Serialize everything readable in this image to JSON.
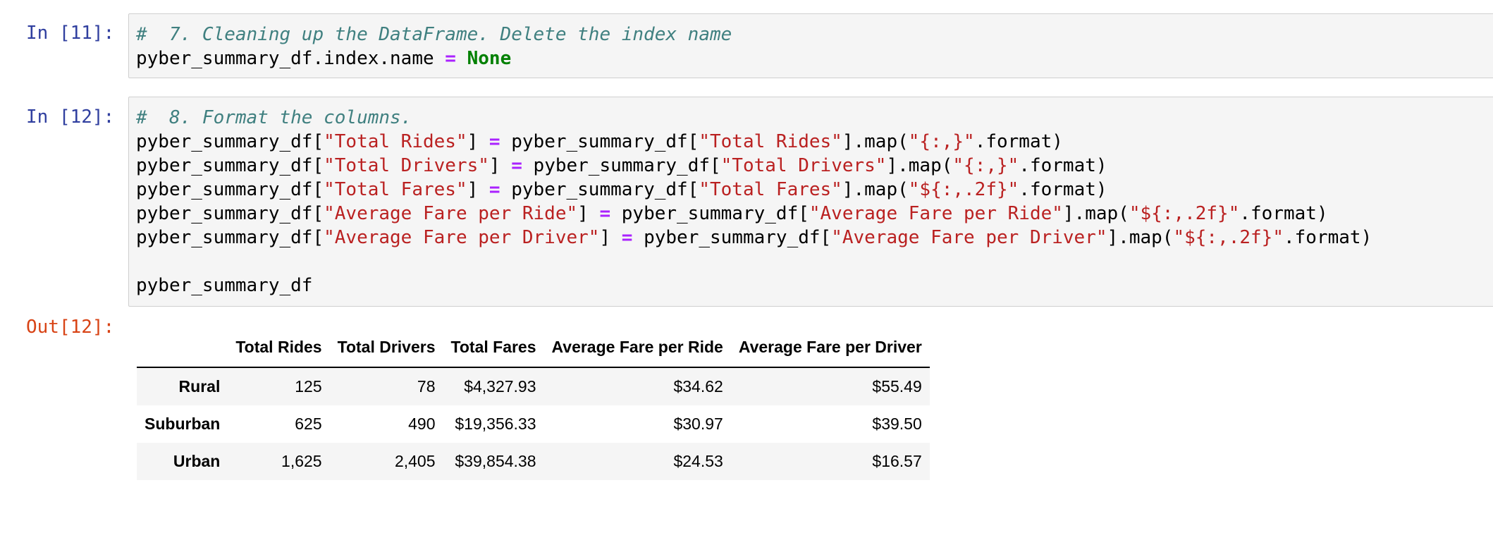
{
  "cells": [
    {
      "prompt": "In [11]:",
      "lines": [
        [
          {
            "t": "#  7. Cleaning up the DataFrame. Delete the index name",
            "c": "cm"
          }
        ],
        [
          {
            "t": "pyber_summary_df.index.name ",
            "c": "nm"
          },
          {
            "t": "=",
            "c": "op"
          },
          {
            "t": " ",
            "c": "nm"
          },
          {
            "t": "None",
            "c": "kw"
          }
        ]
      ]
    },
    {
      "prompt": "In [12]:",
      "lines": [
        [
          {
            "t": "#  8. Format the columns.",
            "c": "cm"
          }
        ],
        [
          {
            "t": "pyber_summary_df[",
            "c": "nm"
          },
          {
            "t": "\"Total Rides\"",
            "c": "st"
          },
          {
            "t": "] ",
            "c": "nm"
          },
          {
            "t": "=",
            "c": "op"
          },
          {
            "t": " pyber_summary_df[",
            "c": "nm"
          },
          {
            "t": "\"Total Rides\"",
            "c": "st"
          },
          {
            "t": "].map(",
            "c": "nm"
          },
          {
            "t": "\"{:,}\"",
            "c": "st"
          },
          {
            "t": ".format)",
            "c": "nm"
          }
        ],
        [
          {
            "t": "pyber_summary_df[",
            "c": "nm"
          },
          {
            "t": "\"Total Drivers\"",
            "c": "st"
          },
          {
            "t": "] ",
            "c": "nm"
          },
          {
            "t": "=",
            "c": "op"
          },
          {
            "t": " pyber_summary_df[",
            "c": "nm"
          },
          {
            "t": "\"Total Drivers\"",
            "c": "st"
          },
          {
            "t": "].map(",
            "c": "nm"
          },
          {
            "t": "\"{:,}\"",
            "c": "st"
          },
          {
            "t": ".format)",
            "c": "nm"
          }
        ],
        [
          {
            "t": "pyber_summary_df[",
            "c": "nm"
          },
          {
            "t": "\"Total Fares\"",
            "c": "st"
          },
          {
            "t": "] ",
            "c": "nm"
          },
          {
            "t": "=",
            "c": "op"
          },
          {
            "t": " pyber_summary_df[",
            "c": "nm"
          },
          {
            "t": "\"Total Fares\"",
            "c": "st"
          },
          {
            "t": "].map(",
            "c": "nm"
          },
          {
            "t": "\"${:,.2f}\"",
            "c": "st"
          },
          {
            "t": ".format)",
            "c": "nm"
          }
        ],
        [
          {
            "t": "pyber_summary_df[",
            "c": "nm"
          },
          {
            "t": "\"Average Fare per Ride\"",
            "c": "st"
          },
          {
            "t": "] ",
            "c": "nm"
          },
          {
            "t": "=",
            "c": "op"
          },
          {
            "t": " pyber_summary_df[",
            "c": "nm"
          },
          {
            "t": "\"Average Fare per Ride\"",
            "c": "st"
          },
          {
            "t": "].map(",
            "c": "nm"
          },
          {
            "t": "\"${:,.2f}\"",
            "c": "st"
          },
          {
            "t": ".format)",
            "c": "nm"
          }
        ],
        [
          {
            "t": "pyber_summary_df[",
            "c": "nm"
          },
          {
            "t": "\"Average Fare per Driver\"",
            "c": "st"
          },
          {
            "t": "] ",
            "c": "nm"
          },
          {
            "t": "=",
            "c": "op"
          },
          {
            "t": " pyber_summary_df[",
            "c": "nm"
          },
          {
            "t": "\"Average Fare per Driver\"",
            "c": "st"
          },
          {
            "t": "].map(",
            "c": "nm"
          },
          {
            "t": "\"${:,.2f}\"",
            "c": "st"
          },
          {
            "t": ".format)",
            "c": "nm"
          }
        ],
        [],
        [
          {
            "t": "pyber_summary_df",
            "c": "nm"
          }
        ]
      ]
    }
  ],
  "output": {
    "prompt": "Out[12]:",
    "columns": [
      "Total Rides",
      "Total Drivers",
      "Total Fares",
      "Average Fare per Ride",
      "Average Fare per Driver"
    ],
    "rows": [
      {
        "index": "Rural",
        "values": [
          "125",
          "78",
          "$4,327.93",
          "$34.62",
          "$55.49"
        ]
      },
      {
        "index": "Suburban",
        "values": [
          "625",
          "490",
          "$19,356.33",
          "$30.97",
          "$39.50"
        ]
      },
      {
        "index": "Urban",
        "values": [
          "1,625",
          "2,405",
          "$39,854.38",
          "$24.53",
          "$16.57"
        ]
      }
    ]
  },
  "syntax_colors": {
    "comment": "#408080",
    "string": "#BA2121",
    "operator": "#AA22FF",
    "keyword": "#008000",
    "in_prompt": "#303F9F",
    "out_prompt": "#D84315"
  }
}
